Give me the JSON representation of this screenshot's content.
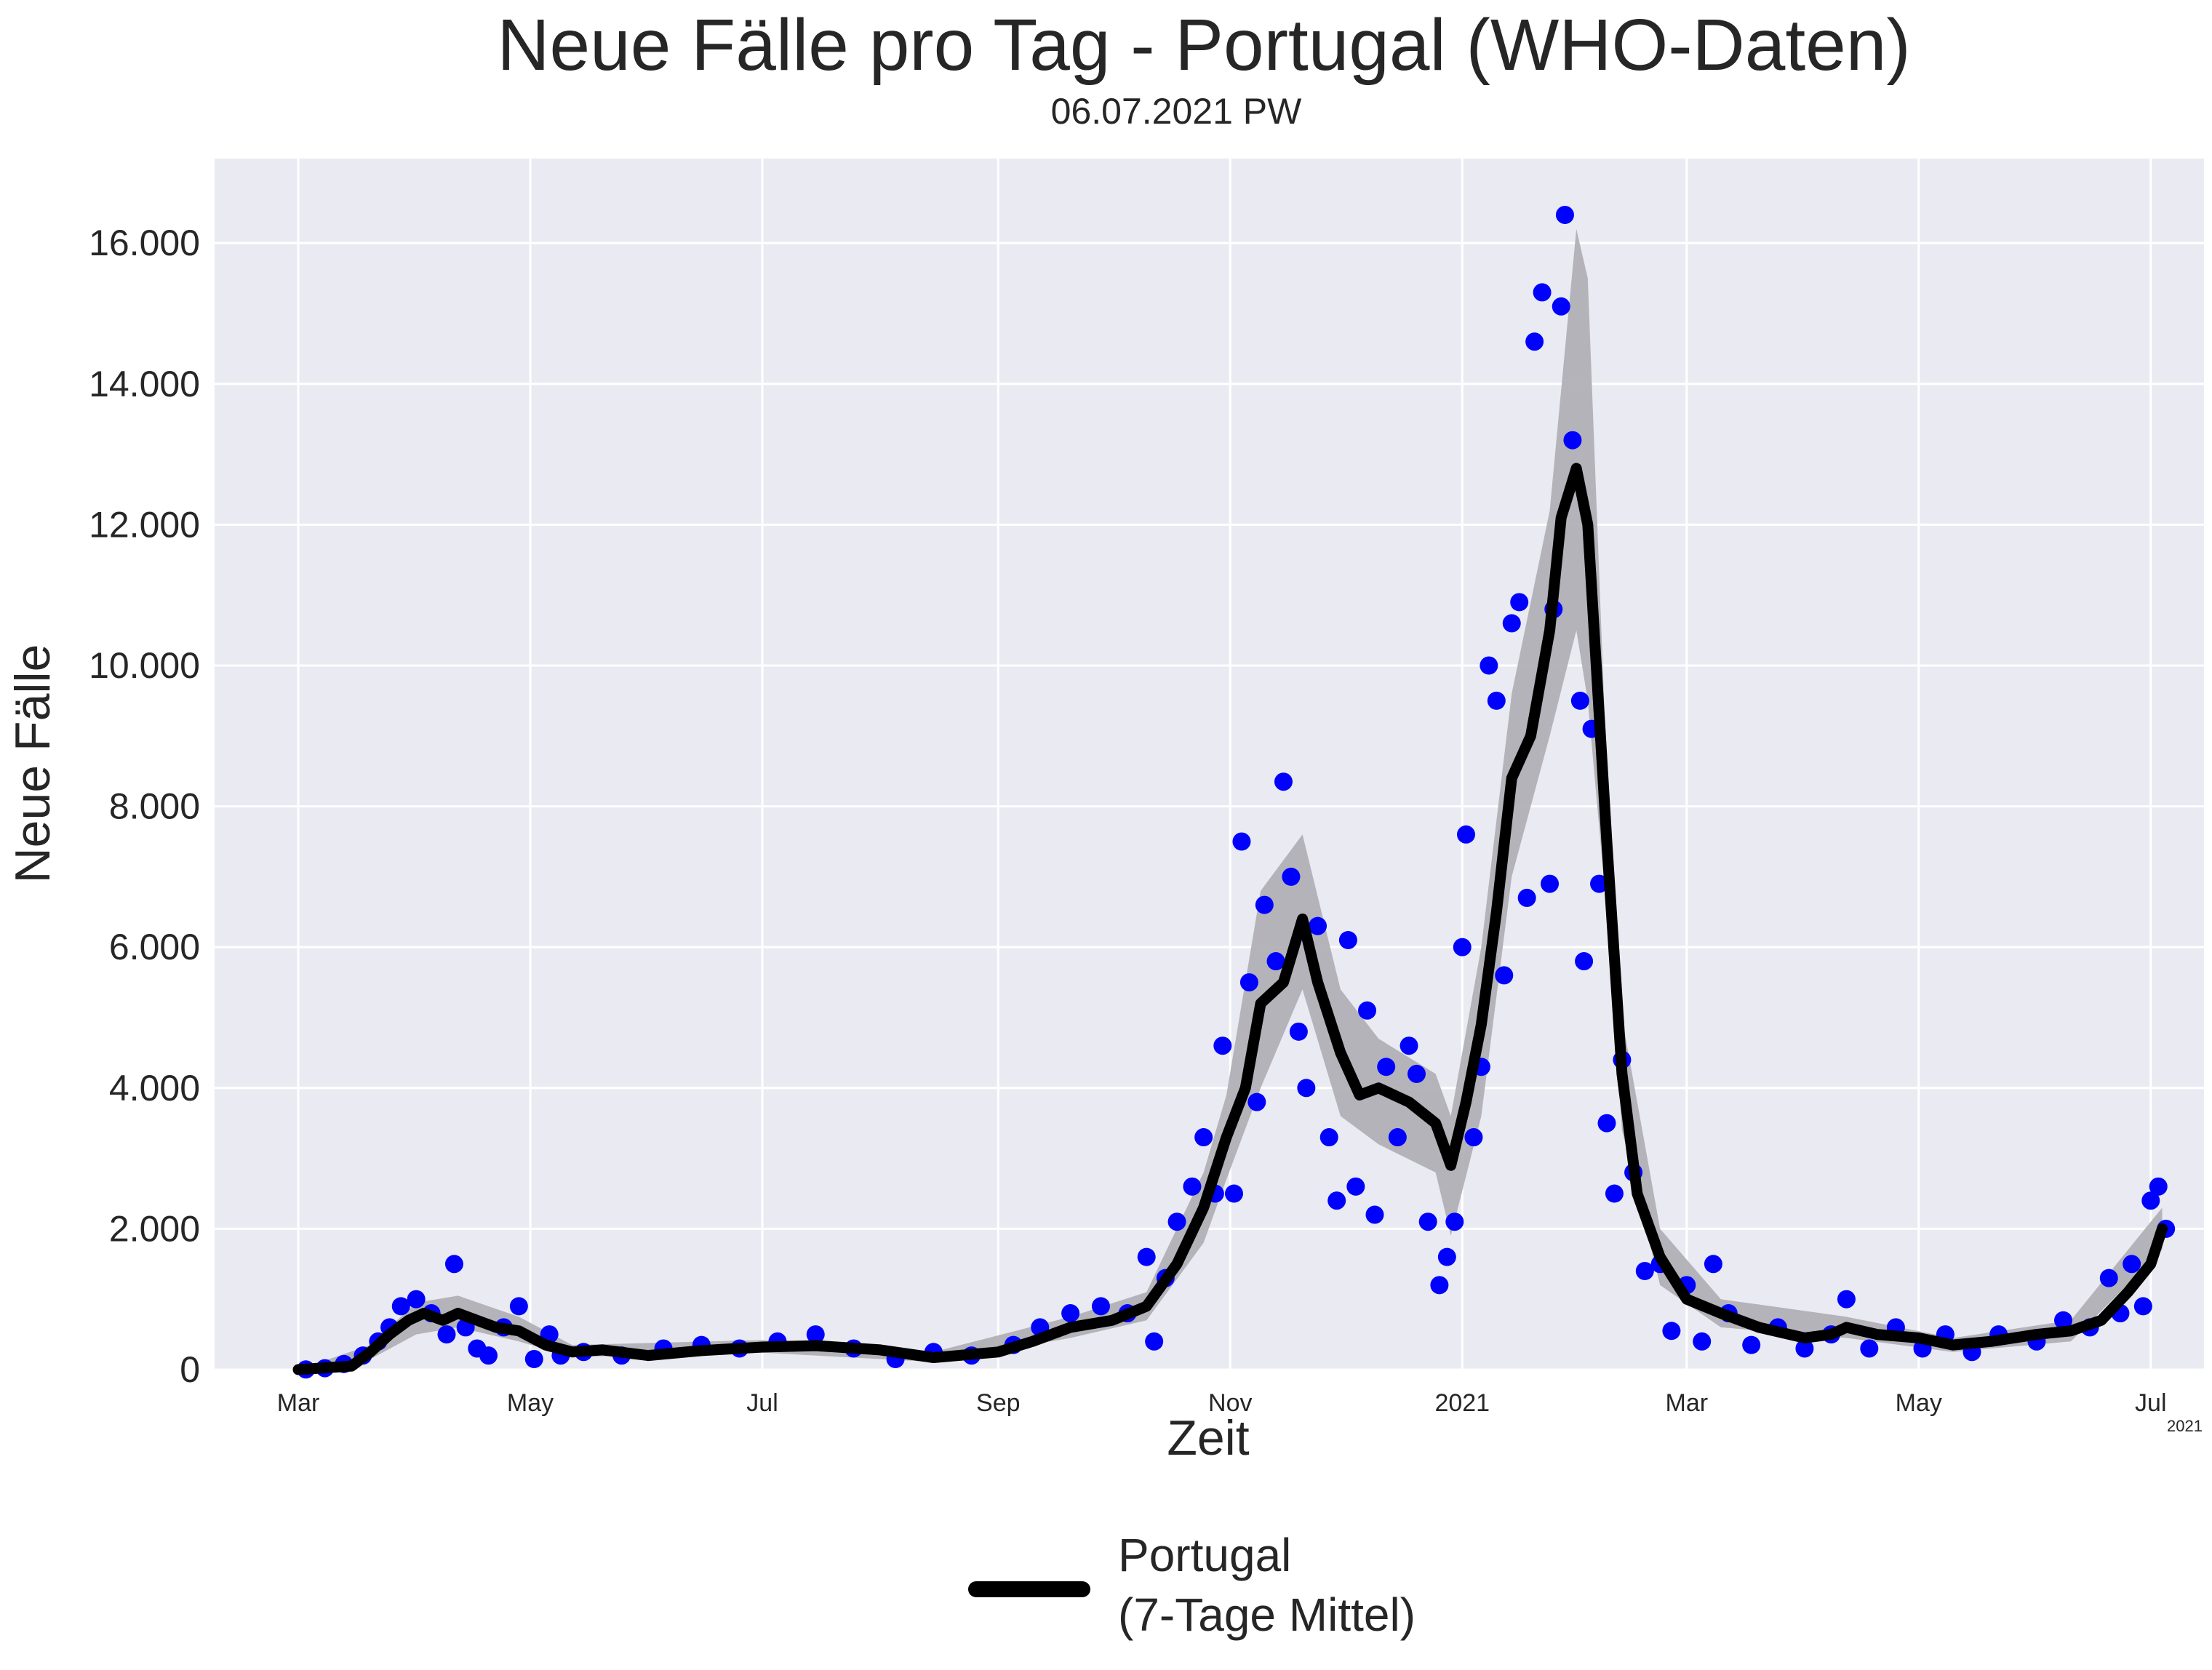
{
  "chart_data": {
    "type": "line",
    "title": "Neue Fälle pro Tag - Portugal (WHO-Daten)",
    "subtitle": "06.07.2021 PW",
    "xlabel": "Zeit",
    "ylabel": "Neue Fälle",
    "x_offset_label": "2021",
    "ylim": [
      0,
      17200
    ],
    "y_ticks": [
      0,
      2000,
      4000,
      6000,
      8000,
      10000,
      12000,
      14000,
      16000
    ],
    "y_tick_labels": [
      "0",
      "2.000",
      "4.000",
      "6.000",
      "8.000",
      "10.000",
      "12.000",
      "14.000",
      "16.000"
    ],
    "xlim": [
      "2020-02-08",
      "2021-07-15"
    ],
    "x_ticks": [
      "2020-03-01",
      "2020-05-01",
      "2020-07-01",
      "2020-09-01",
      "2020-11-01",
      "2021-01-01",
      "2021-03-01",
      "2021-05-01",
      "2021-07-01"
    ],
    "x_tick_labels": [
      "Mar",
      "May",
      "Jul",
      "Sep",
      "Nov",
      "2021",
      "Mar",
      "May",
      "Jul"
    ],
    "grid": true,
    "legend_position": "bottom-center",
    "colors": {
      "points": "#0000ff",
      "line": "#000000",
      "band": "#b0b0b5",
      "plot_bg": "#eaeaf2",
      "grid": "#ffffff"
    },
    "series": [
      {
        "name": "Portugal\n(7-Tage Mittel)",
        "kind": "line",
        "points": [
          [
            "2020-03-01",
            0
          ],
          [
            "2020-03-15",
            50
          ],
          [
            "2020-03-20",
            250
          ],
          [
            "2020-03-25",
            500
          ],
          [
            "2020-03-30",
            700
          ],
          [
            "2020-04-03",
            800
          ],
          [
            "2020-04-08",
            700
          ],
          [
            "2020-04-12",
            800
          ],
          [
            "2020-04-17",
            700
          ],
          [
            "2020-04-22",
            600
          ],
          [
            "2020-04-28",
            550
          ],
          [
            "2020-05-05",
            350
          ],
          [
            "2020-05-12",
            250
          ],
          [
            "2020-05-20",
            280
          ],
          [
            "2020-06-01",
            200
          ],
          [
            "2020-06-15",
            270
          ],
          [
            "2020-07-01",
            320
          ],
          [
            "2020-07-15",
            340
          ],
          [
            "2020-08-01",
            280
          ],
          [
            "2020-08-15",
            170
          ],
          [
            "2020-09-01",
            250
          ],
          [
            "2020-09-10",
            400
          ],
          [
            "2020-09-20",
            600
          ],
          [
            "2020-10-01",
            700
          ],
          [
            "2020-10-10",
            900
          ],
          [
            "2020-10-18",
            1500
          ],
          [
            "2020-10-25",
            2300
          ],
          [
            "2020-10-31",
            3300
          ],
          [
            "2020-11-05",
            4000
          ],
          [
            "2020-11-09",
            5200
          ],
          [
            "2020-11-15",
            5500
          ],
          [
            "2020-11-20",
            6400
          ],
          [
            "2020-11-24",
            5500
          ],
          [
            "2020-11-30",
            4500
          ],
          [
            "2020-12-05",
            3900
          ],
          [
            "2020-12-10",
            4000
          ],
          [
            "2020-12-18",
            3800
          ],
          [
            "2020-12-25",
            3500
          ],
          [
            "2020-12-29",
            2900
          ],
          [
            "2021-01-02",
            3800
          ],
          [
            "2021-01-06",
            4900
          ],
          [
            "2021-01-10",
            6500
          ],
          [
            "2021-01-14",
            8400
          ],
          [
            "2021-01-19",
            9000
          ],
          [
            "2021-01-24",
            10500
          ],
          [
            "2021-01-27",
            12100
          ],
          [
            "2021-01-31",
            12800
          ],
          [
            "2021-02-03",
            12000
          ],
          [
            "2021-02-08",
            7500
          ],
          [
            "2021-02-12",
            4200
          ],
          [
            "2021-02-16",
            2500
          ],
          [
            "2021-02-22",
            1600
          ],
          [
            "2021-03-01",
            1000
          ],
          [
            "2021-03-10",
            800
          ],
          [
            "2021-03-20",
            600
          ],
          [
            "2021-04-01",
            450
          ],
          [
            "2021-04-08",
            500
          ],
          [
            "2021-04-12",
            600
          ],
          [
            "2021-04-20",
            500
          ],
          [
            "2021-05-01",
            450
          ],
          [
            "2021-05-10",
            350
          ],
          [
            "2021-05-20",
            400
          ],
          [
            "2021-06-01",
            500
          ],
          [
            "2021-06-10",
            550
          ],
          [
            "2021-06-18",
            700
          ],
          [
            "2021-06-25",
            1100
          ],
          [
            "2021-07-01",
            1500
          ],
          [
            "2021-07-04",
            2000
          ]
        ]
      },
      {
        "name": "",
        "kind": "band",
        "upper": [
          [
            "2020-03-01",
            0
          ],
          [
            "2020-03-20",
            350
          ],
          [
            "2020-04-01",
            950
          ],
          [
            "2020-04-12",
            1050
          ],
          [
            "2020-04-28",
            750
          ],
          [
            "2020-05-12",
            350
          ],
          [
            "2020-07-01",
            420
          ],
          [
            "2020-08-15",
            250
          ],
          [
            "2020-09-20",
            750
          ],
          [
            "2020-10-10",
            1100
          ],
          [
            "2020-10-25",
            2800
          ],
          [
            "2020-10-31",
            3900
          ],
          [
            "2020-11-09",
            6800
          ],
          [
            "2020-11-20",
            7600
          ],
          [
            "2020-11-30",
            5400
          ],
          [
            "2020-12-10",
            4700
          ],
          [
            "2020-12-25",
            4200
          ],
          [
            "2020-12-29",
            3600
          ],
          [
            "2021-01-06",
            6000
          ],
          [
            "2021-01-14",
            9600
          ],
          [
            "2021-01-24",
            12200
          ],
          [
            "2021-01-31",
            16200
          ],
          [
            "2021-02-03",
            15500
          ],
          [
            "2021-02-08",
            8500
          ],
          [
            "2021-02-12",
            5000
          ],
          [
            "2021-02-22",
            2000
          ],
          [
            "2021-03-10",
            1000
          ],
          [
            "2021-04-12",
            750
          ],
          [
            "2021-05-10",
            450
          ],
          [
            "2021-06-10",
            700
          ],
          [
            "2021-07-04",
            2300
          ]
        ],
        "lower": [
          [
            "2020-03-01",
            0
          ],
          [
            "2020-03-20",
            150
          ],
          [
            "2020-04-01",
            500
          ],
          [
            "2020-04-12",
            600
          ],
          [
            "2020-04-28",
            400
          ],
          [
            "2020-05-12",
            180
          ],
          [
            "2020-07-01",
            240
          ],
          [
            "2020-08-15",
            110
          ],
          [
            "2020-09-20",
            450
          ],
          [
            "2020-10-10",
            700
          ],
          [
            "2020-10-25",
            1800
          ],
          [
            "2020-10-31",
            2700
          ],
          [
            "2020-11-09",
            4000
          ],
          [
            "2020-11-20",
            5400
          ],
          [
            "2020-11-30",
            3600
          ],
          [
            "2020-12-10",
            3200
          ],
          [
            "2020-12-25",
            2800
          ],
          [
            "2020-12-29",
            1900
          ],
          [
            "2021-01-06",
            3600
          ],
          [
            "2021-01-14",
            7000
          ],
          [
            "2021-01-24",
            9000
          ],
          [
            "2021-01-31",
            10500
          ],
          [
            "2021-02-03",
            9500
          ],
          [
            "2021-02-08",
            6500
          ],
          [
            "2021-02-12",
            3400
          ],
          [
            "2021-02-22",
            1200
          ],
          [
            "2021-03-10",
            600
          ],
          [
            "2021-04-12",
            450
          ],
          [
            "2021-05-10",
            250
          ],
          [
            "2021-06-10",
            400
          ],
          [
            "2021-07-04",
            1700
          ]
        ]
      },
      {
        "name": "",
        "kind": "scatter",
        "points": [
          [
            "2020-03-03",
            2
          ],
          [
            "2020-03-08",
            20
          ],
          [
            "2020-03-13",
            80
          ],
          [
            "2020-03-18",
            200
          ],
          [
            "2020-03-22",
            400
          ],
          [
            "2020-03-25",
            600
          ],
          [
            "2020-03-28",
            900
          ],
          [
            "2020-04-01",
            1000
          ],
          [
            "2020-04-05",
            800
          ],
          [
            "2020-04-09",
            500
          ],
          [
            "2020-04-11",
            1500
          ],
          [
            "2020-04-14",
            600
          ],
          [
            "2020-04-17",
            300
          ],
          [
            "2020-04-20",
            200
          ],
          [
            "2020-04-24",
            600
          ],
          [
            "2020-04-28",
            900
          ],
          [
            "2020-05-02",
            150
          ],
          [
            "2020-05-06",
            500
          ],
          [
            "2020-05-09",
            200
          ],
          [
            "2020-05-15",
            250
          ],
          [
            "2020-05-25",
            200
          ],
          [
            "2020-06-05",
            300
          ],
          [
            "2020-06-15",
            350
          ],
          [
            "2020-06-25",
            300
          ],
          [
            "2020-07-05",
            400
          ],
          [
            "2020-07-15",
            500
          ],
          [
            "2020-07-25",
            300
          ],
          [
            "2020-08-05",
            150
          ],
          [
            "2020-08-15",
            250
          ],
          [
            "2020-08-25",
            200
          ],
          [
            "2020-09-05",
            350
          ],
          [
            "2020-09-12",
            600
          ],
          [
            "2020-09-20",
            800
          ],
          [
            "2020-09-28",
            900
          ],
          [
            "2020-10-05",
            800
          ],
          [
            "2020-10-10",
            1600
          ],
          [
            "2020-10-12",
            400
          ],
          [
            "2020-10-15",
            1300
          ],
          [
            "2020-10-18",
            2100
          ],
          [
            "2020-10-22",
            2600
          ],
          [
            "2020-10-25",
            3300
          ],
          [
            "2020-10-28",
            2500
          ],
          [
            "2020-10-30",
            4600
          ],
          [
            "2020-11-02",
            2500
          ],
          [
            "2020-11-04",
            7500
          ],
          [
            "2020-11-06",
            5500
          ],
          [
            "2020-11-08",
            3800
          ],
          [
            "2020-11-10",
            6600
          ],
          [
            "2020-11-13",
            5800
          ],
          [
            "2020-11-15",
            8350
          ],
          [
            "2020-11-17",
            7000
          ],
          [
            "2020-11-19",
            4800
          ],
          [
            "2020-11-21",
            4000
          ],
          [
            "2020-11-24",
            6300
          ],
          [
            "2020-11-27",
            3300
          ],
          [
            "2020-11-29",
            2400
          ],
          [
            "2020-12-02",
            6100
          ],
          [
            "2020-12-04",
            2600
          ],
          [
            "2020-12-07",
            5100
          ],
          [
            "2020-12-09",
            2200
          ],
          [
            "2020-12-12",
            4300
          ],
          [
            "2020-12-15",
            3300
          ],
          [
            "2020-12-18",
            4600
          ],
          [
            "2020-12-20",
            4200
          ],
          [
            "2020-12-23",
            2100
          ],
          [
            "2020-12-26",
            1200
          ],
          [
            "2020-12-28",
            1600
          ],
          [
            "2020-12-30",
            2100
          ],
          [
            "2021-01-01",
            6000
          ],
          [
            "2021-01-02",
            7600
          ],
          [
            "2021-01-04",
            3300
          ],
          [
            "2021-01-06",
            4300
          ],
          [
            "2021-01-08",
            10000
          ],
          [
            "2021-01-10",
            9500
          ],
          [
            "2021-01-12",
            5600
          ],
          [
            "2021-01-14",
            10600
          ],
          [
            "2021-01-16",
            10900
          ],
          [
            "2021-01-18",
            6700
          ],
          [
            "2021-01-20",
            14600
          ],
          [
            "2021-01-22",
            15300
          ],
          [
            "2021-01-24",
            6900
          ],
          [
            "2021-01-25",
            10800
          ],
          [
            "2021-01-27",
            15100
          ],
          [
            "2021-01-28",
            16400
          ],
          [
            "2021-01-30",
            13200
          ],
          [
            "2021-02-01",
            9500
          ],
          [
            "2021-02-02",
            5800
          ],
          [
            "2021-02-04",
            9100
          ],
          [
            "2021-02-06",
            6900
          ],
          [
            "2021-02-08",
            3500
          ],
          [
            "2021-02-10",
            2500
          ],
          [
            "2021-02-12",
            4400
          ],
          [
            "2021-02-15",
            2800
          ],
          [
            "2021-02-18",
            1400
          ],
          [
            "2021-02-22",
            1500
          ],
          [
            "2021-02-25",
            550
          ],
          [
            "2021-03-01",
            1200
          ],
          [
            "2021-03-05",
            400
          ],
          [
            "2021-03-08",
            1500
          ],
          [
            "2021-03-12",
            800
          ],
          [
            "2021-03-18",
            350
          ],
          [
            "2021-03-25",
            600
          ],
          [
            "2021-04-01",
            300
          ],
          [
            "2021-04-08",
            500
          ],
          [
            "2021-04-12",
            1000
          ],
          [
            "2021-04-18",
            300
          ],
          [
            "2021-04-25",
            600
          ],
          [
            "2021-05-02",
            300
          ],
          [
            "2021-05-08",
            500
          ],
          [
            "2021-05-15",
            250
          ],
          [
            "2021-05-22",
            500
          ],
          [
            "2021-06-01",
            400
          ],
          [
            "2021-06-08",
            700
          ],
          [
            "2021-06-15",
            600
          ],
          [
            "2021-06-20",
            1300
          ],
          [
            "2021-06-23",
            800
          ],
          [
            "2021-06-26",
            1500
          ],
          [
            "2021-06-29",
            900
          ],
          [
            "2021-07-01",
            2400
          ],
          [
            "2021-07-03",
            2600
          ],
          [
            "2021-07-05",
            2000
          ]
        ]
      }
    ]
  }
}
